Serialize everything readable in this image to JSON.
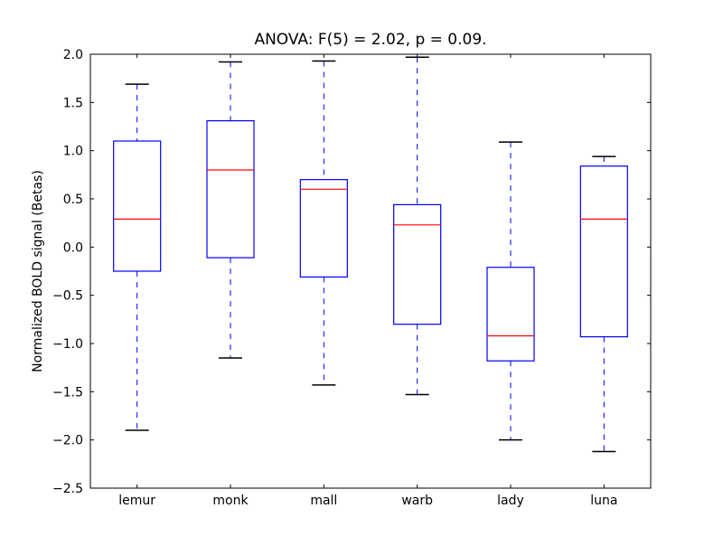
{
  "chart_data": {
    "type": "box",
    "title": "ANOVA: F(5) = 2.02, p = 0.09.",
    "xlabel": "",
    "ylabel": "Normalized BOLD signal (Betas)",
    "ylim": [
      -2.5,
      2.0
    ],
    "yticks": [
      -2.5,
      -2.0,
      -1.5,
      -1.0,
      -0.5,
      0.0,
      0.5,
      1.0,
      1.5,
      2.0
    ],
    "ytick_labels": [
      "−2.5",
      "−2.0",
      "−1.5",
      "−1.0",
      "−0.5",
      "0.0",
      "0.5",
      "1.0",
      "1.5",
      "2.0"
    ],
    "categories": [
      "lemur",
      "monk",
      "mall",
      "warb",
      "lady",
      "luna"
    ],
    "boxes": [
      {
        "whisker_low": -1.9,
        "q1": -0.25,
        "median": 0.29,
        "q3": 1.1,
        "whisker_high": 1.69
      },
      {
        "whisker_low": -1.15,
        "q1": -0.11,
        "median": 0.8,
        "q3": 1.31,
        "whisker_high": 1.92
      },
      {
        "whisker_low": -1.43,
        "q1": -0.31,
        "median": 0.6,
        "q3": 0.7,
        "whisker_high": 1.93
      },
      {
        "whisker_low": -1.53,
        "q1": -0.8,
        "median": 0.23,
        "q3": 0.44,
        "whisker_high": 1.97
      },
      {
        "whisker_low": -2.0,
        "q1": -1.18,
        "median": -0.92,
        "q3": -0.21,
        "whisker_high": 1.09
      },
      {
        "whisker_low": -2.12,
        "q1": -0.93,
        "median": 0.29,
        "q3": 0.84,
        "whisker_high": 0.94
      }
    ],
    "grid": false,
    "colors": {
      "box": "#0000ff",
      "median": "#ff0000",
      "whisker": "#0000ff",
      "cap": "#000000"
    }
  }
}
